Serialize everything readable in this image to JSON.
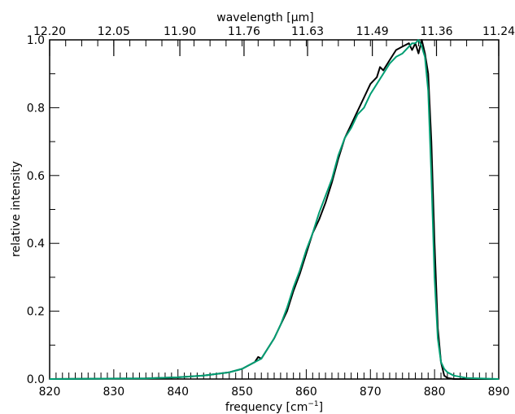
{
  "chart_data": {
    "type": "line",
    "xlabel": "frequency [cm",
    "xlabel_superscript": "−1",
    "xlabel_suffix": "]",
    "ylabel": "relative intensity",
    "top_axis_label": "wavelength [µm]",
    "xlim": [
      820,
      890
    ],
    "ylim": [
      0,
      1.0
    ],
    "x_ticks": [
      820,
      830,
      840,
      850,
      860,
      870,
      880,
      890
    ],
    "x_tick_labels": [
      "820",
      "830",
      "840",
      "850",
      "860",
      "870",
      "880",
      "890"
    ],
    "y_ticks": [
      0,
      0.2,
      0.4,
      0.6,
      0.8,
      1.0
    ],
    "y_tick_labels": [
      "0.0",
      "0.2",
      "0.4",
      "0.6",
      "0.8",
      "1.0"
    ],
    "top_ticks": [
      {
        "label": "12.20",
        "x": 820.0
      },
      {
        "label": "12.05",
        "x": 830.0
      },
      {
        "label": "11.90",
        "x": 840.3
      },
      {
        "label": "11.76",
        "x": 850.3
      },
      {
        "label": "11.63",
        "x": 860.2
      },
      {
        "label": "11.49",
        "x": 870.3
      },
      {
        "label": "11.36",
        "x": 880.3
      },
      {
        "label": "11.24",
        "x": 890.0
      }
    ],
    "grid": false,
    "legend": false,
    "series": [
      {
        "color": "#000000",
        "x": [
          820,
          835,
          840,
          844,
          846,
          848,
          849,
          850,
          851,
          852,
          852.5,
          853,
          854,
          855,
          856,
          857,
          858,
          859,
          860,
          861,
          862,
          863,
          864,
          865,
          866,
          867,
          868,
          869,
          870,
          871,
          871.5,
          872,
          873,
          874,
          875,
          876,
          876.5,
          877,
          877.5,
          878,
          878.5,
          879,
          879.5,
          880,
          880.5,
          881,
          881.5,
          882,
          883,
          885,
          890
        ],
        "y": [
          0,
          0.002,
          0.005,
          0.01,
          0.015,
          0.02,
          0.025,
          0.03,
          0.04,
          0.05,
          0.065,
          0.06,
          0.09,
          0.12,
          0.16,
          0.2,
          0.26,
          0.31,
          0.37,
          0.43,
          0.47,
          0.52,
          0.58,
          0.65,
          0.71,
          0.75,
          0.79,
          0.83,
          0.87,
          0.89,
          0.92,
          0.91,
          0.94,
          0.97,
          0.98,
          0.99,
          0.97,
          0.99,
          0.96,
          1.0,
          0.96,
          0.9,
          0.7,
          0.4,
          0.15,
          0.05,
          0.01,
          0.003,
          0,
          0,
          0
        ]
      },
      {
        "color": "#009e73",
        "x": [
          820,
          835,
          840,
          844,
          846,
          848,
          849,
          850,
          851,
          852,
          853,
          854,
          855,
          856,
          857,
          858,
          859,
          860,
          861,
          862,
          863,
          864,
          865,
          866,
          867,
          868,
          869,
          870,
          871,
          872,
          873,
          874,
          875,
          876,
          876.5,
          877,
          877.5,
          878,
          878.5,
          879,
          879.5,
          880,
          880.5,
          881,
          881.5,
          882,
          883,
          885,
          890
        ],
        "y": [
          0,
          0.002,
          0.005,
          0.01,
          0.015,
          0.02,
          0.025,
          0.03,
          0.04,
          0.05,
          0.06,
          0.09,
          0.12,
          0.16,
          0.21,
          0.27,
          0.32,
          0.38,
          0.43,
          0.49,
          0.54,
          0.59,
          0.66,
          0.71,
          0.74,
          0.78,
          0.8,
          0.84,
          0.87,
          0.9,
          0.93,
          0.95,
          0.96,
          0.98,
          0.99,
          0.99,
          1.0,
          0.98,
          0.95,
          0.85,
          0.6,
          0.3,
          0.12,
          0.05,
          0.03,
          0.02,
          0.01,
          0.003,
          0
        ]
      }
    ]
  }
}
